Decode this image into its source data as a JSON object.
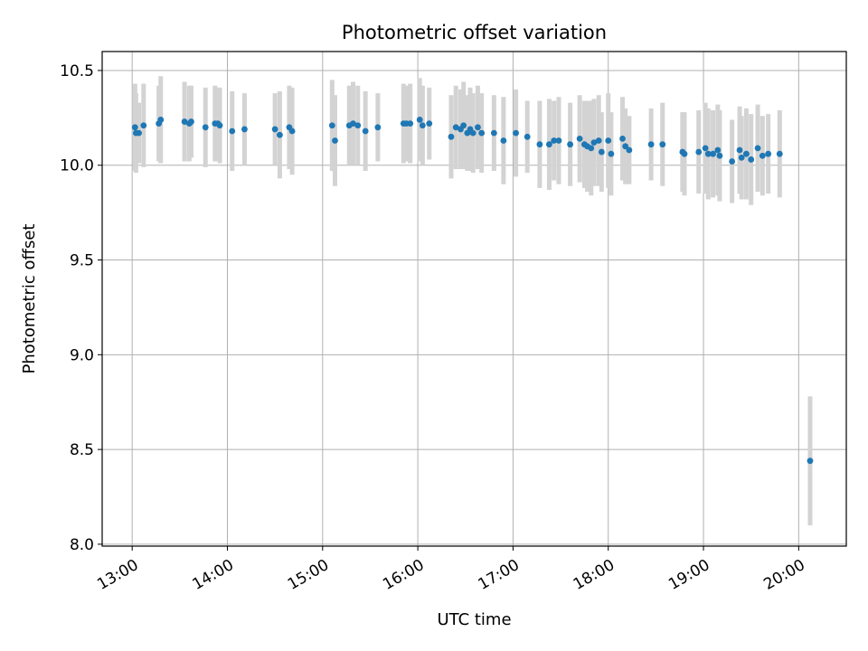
{
  "chart_data": {
    "type": "scatter",
    "title": "Photometric offset variation",
    "xlabel": "UTC time",
    "ylabel": "Photometric offset",
    "x_unit": "hours UTC",
    "xlim": [
      12.685,
      20.5
    ],
    "ylim": [
      7.99,
      10.6
    ],
    "grid": true,
    "xticks": [
      13,
      14,
      15,
      16,
      17,
      18,
      19,
      20
    ],
    "xtick_labels": [
      "13:00",
      "14:00",
      "15:00",
      "16:00",
      "17:00",
      "18:00",
      "19:00",
      "20:00"
    ],
    "yticks": [
      8.0,
      8.5,
      9.0,
      9.5,
      10.0,
      10.5
    ],
    "ytick_labels": [
      "8.0",
      "8.5",
      "9.0",
      "9.5",
      "10.0",
      "10.5"
    ],
    "colors": {
      "marker": "#1f77b4",
      "errorbar": "#d3d3d3",
      "grid": "#b0b0b0"
    },
    "series": [
      {
        "name": "Photometric offset",
        "x": [
          13.03,
          13.04,
          13.07,
          13.12,
          13.28,
          13.3,
          13.55,
          13.6,
          13.62,
          13.77,
          13.87,
          13.9,
          13.92,
          14.05,
          14.18,
          14.5,
          14.55,
          14.65,
          14.68,
          15.1,
          15.13,
          15.28,
          15.32,
          15.37,
          15.45,
          15.58,
          15.85,
          15.88,
          15.92,
          16.02,
          16.05,
          16.12,
          16.35,
          16.4,
          16.45,
          16.48,
          16.52,
          16.55,
          16.58,
          16.63,
          16.67,
          16.8,
          16.9,
          17.03,
          17.15,
          17.28,
          17.38,
          17.43,
          17.48,
          17.6,
          17.7,
          17.75,
          17.78,
          17.82,
          17.85,
          17.9,
          17.93,
          18.0,
          18.03,
          18.15,
          18.18,
          18.22,
          18.45,
          18.57,
          18.78,
          18.8,
          18.95,
          19.02,
          19.05,
          19.1,
          19.15,
          19.17,
          19.3,
          19.38,
          19.4,
          19.45,
          19.5,
          19.57,
          19.62,
          19.68,
          19.8,
          20.12
        ],
        "y": [
          10.2,
          10.17,
          10.17,
          10.21,
          10.22,
          10.24,
          10.23,
          10.22,
          10.23,
          10.2,
          10.22,
          10.22,
          10.21,
          10.18,
          10.19,
          10.19,
          10.16,
          10.2,
          10.18,
          10.21,
          10.13,
          10.21,
          10.22,
          10.21,
          10.18,
          10.2,
          10.22,
          10.22,
          10.22,
          10.24,
          10.21,
          10.22,
          10.15,
          10.2,
          10.19,
          10.21,
          10.17,
          10.19,
          10.17,
          10.2,
          10.17,
          10.17,
          10.13,
          10.17,
          10.15,
          10.11,
          10.11,
          10.13,
          10.13,
          10.11,
          10.14,
          10.11,
          10.1,
          10.09,
          10.12,
          10.13,
          10.07,
          10.13,
          10.06,
          10.14,
          10.1,
          10.08,
          10.11,
          10.11,
          10.07,
          10.06,
          10.07,
          10.09,
          10.06,
          10.06,
          10.08,
          10.05,
          10.02,
          10.08,
          10.04,
          10.06,
          10.03,
          10.09,
          10.05,
          10.06,
          10.06,
          8.44
        ],
        "err": [
          0.23,
          0.21,
          0.16,
          0.22,
          0.2,
          0.23,
          0.21,
          0.2,
          0.19,
          0.21,
          0.2,
          0.19,
          0.2,
          0.21,
          0.19,
          0.19,
          0.23,
          0.22,
          0.23,
          0.24,
          0.24,
          0.21,
          0.22,
          0.21,
          0.21,
          0.18,
          0.21,
          0.2,
          0.21,
          0.22,
          0.21,
          0.19,
          0.22,
          0.22,
          0.21,
          0.23,
          0.2,
          0.22,
          0.21,
          0.22,
          0.21,
          0.2,
          0.23,
          0.23,
          0.19,
          0.23,
          0.24,
          0.21,
          0.23,
          0.22,
          0.23,
          0.23,
          0.24,
          0.25,
          0.23,
          0.24,
          0.21,
          0.25,
          0.22,
          0.22,
          0.2,
          0.18,
          0.19,
          0.22,
          0.21,
          0.22,
          0.22,
          0.24,
          0.24,
          0.23,
          0.24,
          0.24,
          0.22,
          0.23,
          0.22,
          0.24,
          0.24,
          0.23,
          0.21,
          0.21,
          0.23,
          0.34
        ]
      }
    ]
  }
}
